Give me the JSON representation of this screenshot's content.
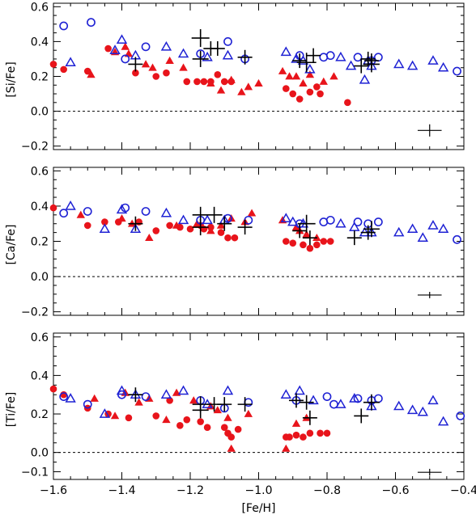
{
  "colors": {
    "red": "#e8141b",
    "blue": "#1f22d4",
    "black": "#000000"
  },
  "chart_data": [
    {
      "type": "scatter",
      "ylabel": "[Si/Fe]",
      "xlabel": "",
      "xlim": [
        -1.6,
        -0.4
      ],
      "ylim": [
        -0.22,
        0.62
      ],
      "x_ticks": [
        -1.6,
        -1.4,
        -1.2,
        -1.0,
        -0.8,
        -0.6,
        -0.4
      ],
      "x_tick_labels": [
        "",
        "",
        "",
        "",
        "",
        "",
        ""
      ],
      "y_ticks": [
        -0.2,
        0.0,
        0.2,
        0.4,
        0.6
      ],
      "y_tick_labels": [
        "-0.2",
        "0.0",
        "0.2",
        "0.4",
        "0.6"
      ],
      "zero_line": true,
      "error_bar": {
        "x": -0.5,
        "y": -0.11,
        "xerr": 0.035,
        "yerr": 0.035
      },
      "series": [
        {
          "marker": "filled-circle",
          "color": "#e8141b",
          "x": [
            -1.6,
            -1.57,
            -1.5,
            -1.44,
            -1.36,
            -1.3,
            -1.27,
            -1.21,
            -1.18,
            -1.16,
            -1.14,
            -1.12,
            -1.1,
            -1.08,
            -0.92,
            -0.9,
            -0.88,
            -0.85,
            -0.83,
            -0.82,
            -0.74
          ],
          "y": [
            0.27,
            0.24,
            0.23,
            0.36,
            0.22,
            0.2,
            0.22,
            0.17,
            0.17,
            0.17,
            0.17,
            0.21,
            0.17,
            0.17,
            0.13,
            0.1,
            0.07,
            0.11,
            0.14,
            0.1,
            0.05
          ]
        },
        {
          "marker": "filled-triangle",
          "color": "#e8141b",
          "x": [
            -1.49,
            -1.42,
            -1.39,
            -1.38,
            -1.33,
            -1.31,
            -1.26,
            -1.22,
            -1.14,
            -1.11,
            -1.08,
            -1.05,
            -1.03,
            -1.0,
            -0.93,
            -0.91,
            -0.89,
            -0.87,
            -0.85,
            -0.81,
            -0.78
          ],
          "y": [
            0.21,
            0.34,
            0.37,
            0.33,
            0.27,
            0.25,
            0.29,
            0.25,
            0.16,
            0.12,
            0.18,
            0.11,
            0.14,
            0.16,
            0.23,
            0.2,
            0.2,
            0.16,
            0.21,
            0.17,
            0.2
          ]
        },
        {
          "marker": "open-circle",
          "color": "#1f22d4",
          "x": [
            -1.57,
            -1.49,
            -1.39,
            -1.33,
            -1.17,
            -1.09,
            -1.04,
            -0.88,
            -0.81,
            -0.79,
            -0.71,
            -0.67,
            -0.65,
            -0.42
          ],
          "y": [
            0.49,
            0.51,
            0.3,
            0.37,
            0.33,
            0.4,
            0.3,
            0.32,
            0.31,
            0.32,
            0.31,
            0.29,
            0.31,
            0.23
          ]
        },
        {
          "marker": "open-triangle",
          "color": "#1f22d4",
          "x": [
            -1.55,
            -1.42,
            -1.4,
            -1.36,
            -1.27,
            -1.22,
            -1.15,
            -1.09,
            -0.92,
            -0.89,
            -0.87,
            -0.85,
            -0.76,
            -0.73,
            -0.69,
            -0.68,
            -0.67,
            -0.59,
            -0.55,
            -0.49,
            -0.46
          ],
          "y": [
            0.28,
            0.35,
            0.41,
            0.32,
            0.37,
            0.33,
            0.31,
            0.32,
            0.34,
            0.3,
            0.29,
            0.24,
            0.31,
            0.26,
            0.18,
            0.29,
            0.26,
            0.27,
            0.26,
            0.29,
            0.25
          ]
        },
        {
          "marker": "plus",
          "color": "#000000",
          "x": [
            -1.36,
            -1.17,
            -1.17,
            -1.14,
            -1.12,
            -1.04,
            -0.88,
            -0.86,
            -0.84,
            -0.7,
            -0.68,
            -0.67,
            -0.67
          ],
          "y": [
            0.27,
            0.42,
            0.3,
            0.36,
            0.36,
            0.31,
            0.29,
            0.28,
            0.32,
            0.26,
            0.3,
            0.27,
            0.29
          ],
          "size": [
            9,
            11,
            10,
            9,
            9,
            9,
            9,
            12,
            9,
            9,
            9,
            10,
            9
          ]
        }
      ]
    },
    {
      "type": "scatter",
      "ylabel": "[Ca/Fe]",
      "xlabel": "",
      "xlim": [
        -1.6,
        -0.4
      ],
      "ylim": [
        -0.22,
        0.62
      ],
      "x_ticks": [
        -1.6,
        -1.4,
        -1.2,
        -1.0,
        -0.8,
        -0.6,
        -0.4
      ],
      "x_tick_labels": [
        "",
        "",
        "",
        "",
        "",
        "",
        ""
      ],
      "y_ticks": [
        -0.2,
        0.0,
        0.2,
        0.4,
        0.6
      ],
      "y_tick_labels": [
        "-0.2",
        "0.0",
        "0.2",
        "0.4",
        "0.6"
      ],
      "zero_line": true,
      "error_bar": {
        "x": -0.5,
        "y": -0.105,
        "xerr": 0.035,
        "yerr": 0.018
      },
      "series": [
        {
          "marker": "filled-circle",
          "color": "#e8141b",
          "x": [
            -1.6,
            -1.5,
            -1.45,
            -1.41,
            -1.35,
            -1.3,
            -1.26,
            -1.23,
            -1.2,
            -1.17,
            -1.16,
            -1.14,
            -1.11,
            -1.09,
            -1.07,
            -0.92,
            -0.9,
            -0.87,
            -0.85,
            -0.83,
            -0.81,
            -0.79
          ],
          "y": [
            0.39,
            0.29,
            0.31,
            0.31,
            0.31,
            0.26,
            0.29,
            0.28,
            0.27,
            0.29,
            0.27,
            0.28,
            0.25,
            0.22,
            0.22,
            0.2,
            0.19,
            0.18,
            0.16,
            0.18,
            0.2,
            0.2
          ]
        },
        {
          "marker": "filled-triangle",
          "color": "#e8141b",
          "x": [
            -1.52,
            -1.4,
            -1.37,
            -1.32,
            -1.24,
            -1.18,
            -1.14,
            -1.11,
            -1.08,
            -1.04,
            -1.02,
            -0.93,
            -0.89,
            -0.88,
            -0.86,
            -0.83
          ],
          "y": [
            0.35,
            0.33,
            0.3,
            0.22,
            0.29,
            0.3,
            0.26,
            0.29,
            0.33,
            0.31,
            0.36,
            0.32,
            0.28,
            0.26,
            0.24,
            0.22
          ]
        },
        {
          "marker": "open-circle",
          "color": "#1f22d4",
          "x": [
            -1.57,
            -1.5,
            -1.39,
            -1.33,
            -1.17,
            -1.09,
            -1.03,
            -0.88,
            -0.81,
            -0.79,
            -0.71,
            -0.68,
            -0.65,
            -0.42
          ],
          "y": [
            0.36,
            0.37,
            0.39,
            0.37,
            0.32,
            0.33,
            0.32,
            0.3,
            0.31,
            0.32,
            0.31,
            0.3,
            0.31,
            0.21
          ]
        },
        {
          "marker": "open-triangle",
          "color": "#1f22d4",
          "x": [
            -1.55,
            -1.45,
            -1.4,
            -1.36,
            -1.27,
            -1.22,
            -1.15,
            -1.1,
            -0.92,
            -0.9,
            -0.87,
            -0.76,
            -0.72,
            -0.69,
            -0.67,
            -0.59,
            -0.55,
            -0.52,
            -0.49,
            -0.46
          ],
          "y": [
            0.4,
            0.27,
            0.38,
            0.27,
            0.36,
            0.32,
            0.32,
            0.32,
            0.33,
            0.31,
            0.3,
            0.3,
            0.28,
            0.25,
            0.25,
            0.25,
            0.27,
            0.22,
            0.29,
            0.27
          ]
        },
        {
          "marker": "plus",
          "color": "#000000",
          "x": [
            -1.36,
            -1.17,
            -1.17,
            -1.13,
            -1.1,
            -1.04,
            -0.88,
            -0.86,
            -0.85,
            -0.72,
            -0.68,
            -0.67
          ],
          "y": [
            0.3,
            0.35,
            0.28,
            0.35,
            0.3,
            0.28,
            0.26,
            0.3,
            0.22,
            0.22,
            0.25,
            0.27
          ],
          "size": [
            9,
            10,
            10,
            10,
            9,
            9,
            9,
            11,
            9,
            9,
            9,
            10
          ]
        }
      ]
    },
    {
      "type": "scatter",
      "ylabel": "[Ti/Fe]",
      "xlabel": "[Fe/H]",
      "xlim": [
        -1.6,
        -0.4
      ],
      "ylim": [
        -0.14,
        0.62
      ],
      "x_ticks": [
        -1.6,
        -1.4,
        -1.2,
        -1.0,
        -0.8,
        -0.6,
        -0.4
      ],
      "x_tick_labels": [
        "−1.6",
        "−1.4",
        "−1.2",
        "−1.0",
        "−0.8",
        "−0.6",
        "−0.4"
      ],
      "y_ticks": [
        -0.1,
        0.0,
        0.2,
        0.4,
        0.6
      ],
      "y_tick_labels": [
        "-0.1",
        "0.00",
        "0.20",
        "0.40",
        "0.60"
      ],
      "y_tick_labels_display": [
        "−0.1",
        "0.0",
        "0.2",
        "0.4",
        "0.6"
      ],
      "zero_line": true,
      "error_bar": {
        "x": -0.5,
        "y": -0.103,
        "xerr": 0.035,
        "yerr": 0.018
      },
      "series": [
        {
          "marker": "filled-circle",
          "color": "#e8141b",
          "x": [
            -1.6,
            -1.57,
            -1.5,
            -1.44,
            -1.38,
            -1.3,
            -1.26,
            -1.23,
            -1.21,
            -1.17,
            -1.15,
            -1.1,
            -1.09,
            -1.08,
            -1.06,
            -0.92,
            -0.91,
            -0.89,
            -0.87,
            -0.85,
            -0.82,
            -0.8
          ],
          "y": [
            0.33,
            0.3,
            0.23,
            0.2,
            0.18,
            0.19,
            0.27,
            0.14,
            0.17,
            0.16,
            0.13,
            0.13,
            0.1,
            0.08,
            0.12,
            0.08,
            0.08,
            0.09,
            0.08,
            0.1,
            0.1,
            0.1
          ]
        },
        {
          "marker": "filled-triangle",
          "color": "#e8141b",
          "x": [
            -1.48,
            -1.42,
            -1.39,
            -1.35,
            -1.32,
            -1.27,
            -1.24,
            -1.19,
            -1.14,
            -1.12,
            -1.09,
            -1.08,
            -1.03,
            -0.92,
            -0.89,
            -0.86
          ],
          "y": [
            0.28,
            0.19,
            0.31,
            0.26,
            0.28,
            0.17,
            0.31,
            0.27,
            0.24,
            0.22,
            0.18,
            0.02,
            0.2,
            0.02,
            0.15,
            0.18
          ]
        },
        {
          "marker": "open-circle",
          "color": "#1f22d4",
          "x": [
            -1.57,
            -1.5,
            -1.4,
            -1.33,
            -1.17,
            -1.1,
            -1.03,
            -0.89,
            -0.8,
            -0.78,
            -0.71,
            -0.67,
            -0.65,
            -0.41
          ],
          "y": [
            0.29,
            0.25,
            0.3,
            0.29,
            0.27,
            0.23,
            0.26,
            0.27,
            0.29,
            0.25,
            0.28,
            0.27,
            0.28,
            0.19
          ]
        },
        {
          "marker": "open-triangle",
          "color": "#1f22d4",
          "x": [
            -1.55,
            -1.45,
            -1.4,
            -1.36,
            -1.27,
            -1.22,
            -1.15,
            -1.09,
            -0.92,
            -0.88,
            -0.84,
            -0.76,
            -0.72,
            -0.67,
            -0.59,
            -0.55,
            -0.52,
            -0.49,
            -0.46
          ],
          "y": [
            0.28,
            0.2,
            0.32,
            0.3,
            0.3,
            0.32,
            0.25,
            0.32,
            0.3,
            0.32,
            0.27,
            0.25,
            0.28,
            0.24,
            0.24,
            0.22,
            0.21,
            0.27,
            0.16
          ]
        },
        {
          "marker": "plus",
          "color": "#000000",
          "x": [
            -1.36,
            -1.17,
            -1.17,
            -1.13,
            -1.1,
            -1.04,
            -0.89,
            -0.86,
            -0.85,
            -0.7,
            -0.67
          ],
          "y": [
            0.3,
            0.25,
            0.22,
            0.25,
            0.25,
            0.25,
            0.27,
            0.26,
            0.18,
            0.19,
            0.26
          ],
          "size": [
            9,
            10,
            10,
            9,
            9,
            9,
            9,
            9,
            9,
            9,
            10
          ]
        }
      ]
    }
  ]
}
